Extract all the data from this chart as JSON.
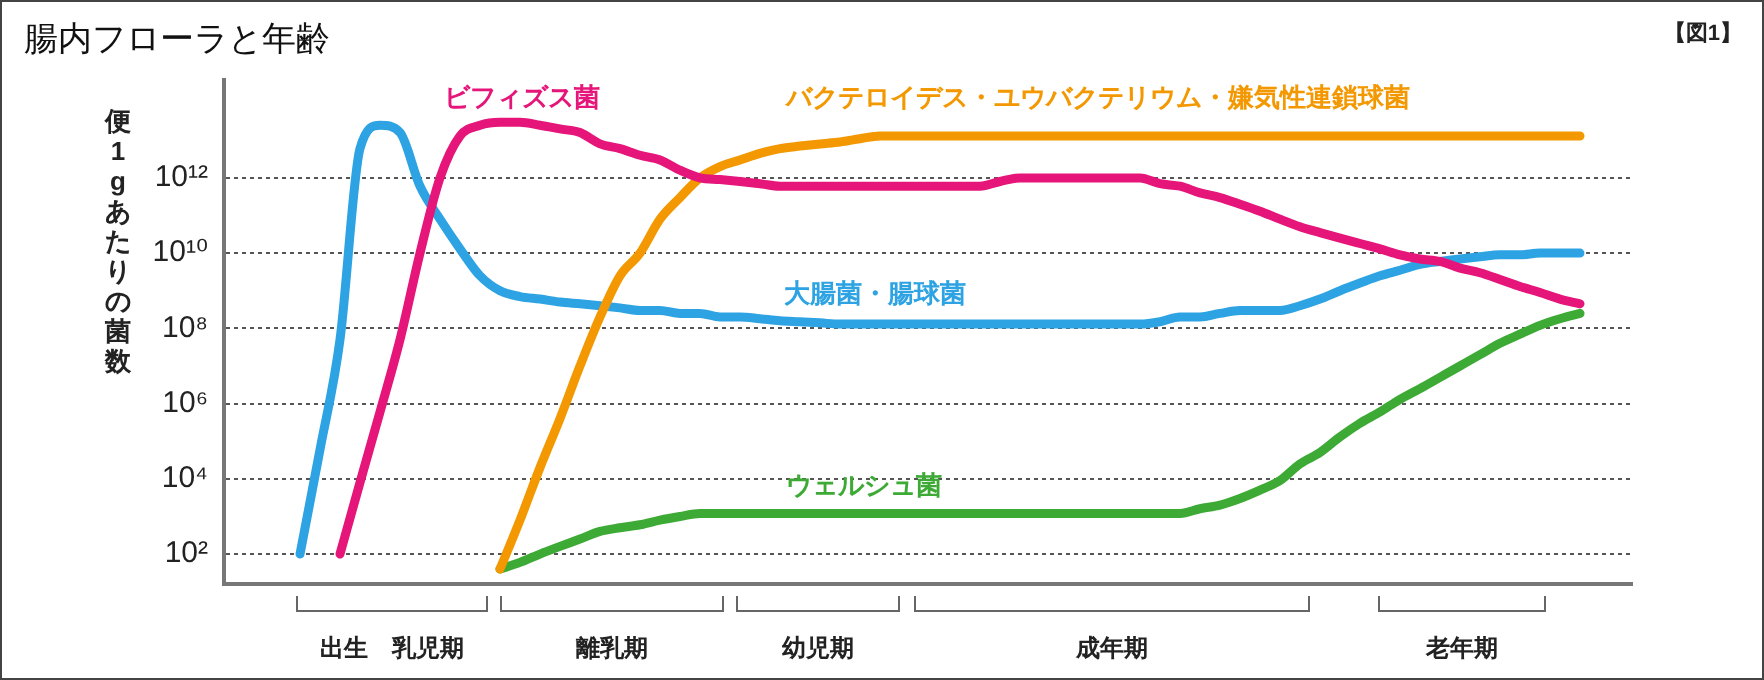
{
  "chart_data": {
    "type": "line",
    "title": "腸内フローラと年齢",
    "ylabel": "便1gあたりの菌数",
    "categories": [
      null,
      null,
      null,
      null,
      null,
      null,
      null,
      null,
      null,
      null,
      null,
      null,
      null,
      null,
      null,
      null,
      null,
      null,
      null,
      null,
      null,
      null,
      null,
      null,
      null,
      null,
      null,
      null,
      null,
      null,
      null,
      null,
      null,
      null,
      null,
      null,
      null,
      null,
      null,
      null,
      null,
      null,
      null,
      null,
      null,
      null,
      null,
      null,
      null,
      null,
      null,
      null,
      null,
      null,
      null,
      null,
      null,
      null,
      null,
      null,
      null,
      null,
      null,
      null,
      null
    ],
    "series": [
      {
        "name": "ビフィズス菌",
        "color": "#e5157a",
        "values": [
          null,
          null,
          100.0,
          8000.0,
          600000.0,
          50000000.0,
          10000000000.0,
          1000000000000.0,
          13000000000000.0,
          25000000000000.0,
          30000000000000.0,
          30000000000000.0,
          25000000000000.0,
          20000000000000.0,
          16000000000000.0,
          8000000000000.0,
          6000000000000.0,
          4000000000000.0,
          3000000000000.0,
          1600000000000.0,
          1000000000000.0,
          900000000000.0,
          800000000000.0,
          700000000000.0,
          600000000000.0,
          600000000000.0,
          600000000000.0,
          600000000000.0,
          600000000000.0,
          600000000000.0,
          600000000000.0,
          600000000000.0,
          600000000000.0,
          600000000000.0,
          600000000000.0,
          800000000000.0,
          1000000000000.0,
          1000000000000.0,
          1000000000000.0,
          1000000000000.0,
          1000000000000.0,
          1000000000000.0,
          1000000000000.0,
          700000000000.0,
          600000000000.0,
          400000000000.0,
          300000000000.0,
          200000000000.0,
          130000000000.0,
          80000000000.0,
          50000000000.0,
          35000000000.0,
          25000000000.0,
          18000000000.0,
          13000000000.0,
          9000000000.0,
          7000000000.0,
          6000000000.0,
          4000000000.0,
          3000000000.0,
          2000000000.0,
          1300000000.0,
          900000000.0,
          600000000.0,
          450000000.0
        ]
      },
      {
        "name": "バクテロイデス・ユウバクテリウム・嫌気性連鎖球菌",
        "color": "#f39800",
        "values": [
          null,
          null,
          null,
          null,
          null,
          null,
          null,
          null,
          null,
          null,
          40.0,
          800.0,
          20000.0,
          400000.0,
          10000000.0,
          200000000.0,
          2500000000.0,
          10000000000.0,
          80000000000.0,
          300000000000.0,
          1000000000000.0,
          2000000000000.0,
          3000000000000.0,
          4500000000000.0,
          6000000000000.0,
          7000000000000.0,
          8000000000000.0,
          9000000000000.0,
          11000000000000.0,
          13000000000000.0,
          13000000000000.0,
          13000000000000.0,
          13000000000000.0,
          13000000000000.0,
          13000000000000.0,
          13000000000000.0,
          13000000000000.0,
          13000000000000.0,
          13000000000000.0,
          13000000000000.0,
          13000000000000.0,
          13000000000000.0,
          13000000000000.0,
          13000000000000.0,
          13000000000000.0,
          13000000000000.0,
          13000000000000.0,
          13000000000000.0,
          13000000000000.0,
          13000000000000.0,
          13000000000000.0,
          13000000000000.0,
          13000000000000.0,
          13000000000000.0,
          13000000000000.0,
          13000000000000.0,
          13000000000000.0,
          13000000000000.0,
          13000000000000.0,
          13000000000000.0,
          13000000000000.0,
          13000000000000.0,
          13000000000000.0,
          13000000000000.0,
          13000000000000.0
        ]
      },
      {
        "name": "大腸菌・腸球菌",
        "color": "#2ea3e3",
        "values": [
          100.0,
          60000.0,
          50000000.0,
          6000000000000.0,
          25000000000000.0,
          16000000000000.0,
          600000000000.0,
          80000000000.0,
          13000000000.0,
          2500000000.0,
          1000000000.0,
          700000000.0,
          600000000.0,
          500000000.0,
          450000000.0,
          400000000.0,
          350000000.0,
          300000000.0,
          300000000.0,
          250000000.0,
          250000000.0,
          200000000.0,
          200000000.0,
          180000000.0,
          160000000.0,
          150000000.0,
          140000000.0,
          130000000.0,
          130000000.0,
          130000000.0,
          130000000.0,
          130000000.0,
          130000000.0,
          130000000.0,
          130000000.0,
          130000000.0,
          130000000.0,
          130000000.0,
          130000000.0,
          130000000.0,
          130000000.0,
          130000000.0,
          130000000.0,
          150000000.0,
          200000000.0,
          200000000.0,
          250000000.0,
          300000000.0,
          300000000.0,
          300000000.0,
          400000000.0,
          600000000.0,
          1000000000.0,
          1600000000.0,
          2500000000.0,
          3500000000.0,
          5000000000.0,
          6000000000.0,
          7000000000.0,
          8000000000.0,
          9000000000.0,
          9000000000.0,
          10000000000.0,
          10000000000.0,
          10000000000.0
        ]
      },
      {
        "name": "ウェルシュ菌",
        "color": "#3daa35",
        "values": [
          null,
          null,
          null,
          null,
          null,
          null,
          null,
          null,
          null,
          null,
          40.0,
          60.0,
          100.0,
          160.0,
          250.0,
          400.0,
          500.0,
          600.0,
          800.0,
          1000.0,
          1200.0,
          1200.0,
          1200.0,
          1200.0,
          1200.0,
          1200.0,
          1200.0,
          1200.0,
          1200.0,
          1200.0,
          1200.0,
          1200.0,
          1200.0,
          1200.0,
          1200.0,
          1200.0,
          1200.0,
          1200.0,
          1200.0,
          1200.0,
          1200.0,
          1200.0,
          1200.0,
          1200.0,
          1200.0,
          1600.0,
          2000.0,
          3000.0,
          5000.0,
          9000.0,
          25000.0,
          50000.0,
          130000.0,
          300000.0,
          600000.0,
          1300000.0,
          2500000.0,
          5000000.0,
          10000000.0,
          20000000.0,
          40000000.0,
          70000000.0,
          120000000.0,
          180000000.0,
          250000000.0
        ]
      }
    ],
    "log": "y",
    "ylim": [
      16,
      400000000000000.0
    ],
    "yticks": [
      {
        "value": 100.0,
        "label": "10²"
      },
      {
        "value": 10000.0,
        "label": "10⁴"
      },
      {
        "value": 1000000.0,
        "label": "10⁶"
      },
      {
        "value": 100000000.0,
        "label": "10⁸"
      },
      {
        "value": 10000000000.0,
        "label": "10¹⁰"
      },
      {
        "value": 1000000000000.0,
        "label": "10¹²"
      }
    ],
    "grid": "y",
    "legend": false,
    "marker": "none",
    "line_style": "solid",
    "annotations": [
      "【図1】",
      "出生　乳児期",
      "離乳期",
      "幼児期",
      "成年期",
      "老年期"
    ]
  }
}
